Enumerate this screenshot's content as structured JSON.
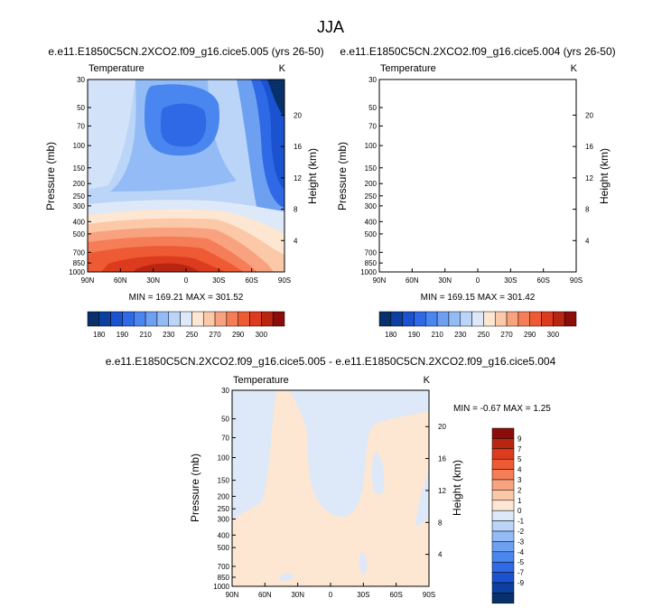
{
  "page_title": "JJA",
  "colors": {
    "cold": [
      "#08306b",
      "#0c3fa0",
      "#1a52d0",
      "#2f69e6",
      "#4a86ef",
      "#6ea0f2",
      "#93bbf5",
      "#bad5f7"
    ],
    "neutral": "#dde9f8",
    "warm": [
      "#fde6d2",
      "#fbc9a8",
      "#f8a27f",
      "#f57d57",
      "#ee5a33",
      "#dc3b1d",
      "#b82612",
      "#8a0d0a"
    ]
  },
  "chart_data": [
    {
      "type": "heatmap",
      "title": "e.e11.E1850C5CN.2XCO2.f09_g16.cice5.005 (yrs 26-50)",
      "field_label": "Temperature",
      "units": "K",
      "xlabel": "",
      "ylabel": "Pressure (mb)",
      "ylabel_right": "Height (km)",
      "x_ticks": [
        "90N",
        "60N",
        "30N",
        "0",
        "30S",
        "60S",
        "90S"
      ],
      "y_ticks": [
        "30",
        "50",
        "70",
        "100",
        "150",
        "200",
        "250",
        "300",
        "400",
        "500",
        "700",
        "850",
        "1000"
      ],
      "y_ticks_right": [
        "20",
        "16",
        "12",
        "8",
        "4"
      ],
      "stats": "MIN = 169.21   MAX = 301.52",
      "colorbar_labels": [
        "180",
        "190",
        "210",
        "230",
        "250",
        "270",
        "290",
        "300"
      ]
    },
    {
      "type": "heatmap",
      "title": "e.e11.E1850C5CN.2XCO2.f09_g16.cice5.004 (yrs 26-50)",
      "field_label": "Temperature",
      "units": "K",
      "xlabel": "",
      "ylabel": "Pressure (mb)",
      "ylabel_right": "Height (km)",
      "x_ticks": [
        "90N",
        "60N",
        "30N",
        "0",
        "30S",
        "60S",
        "90S"
      ],
      "y_ticks": [
        "30",
        "50",
        "70",
        "100",
        "150",
        "200",
        "250",
        "300",
        "400",
        "500",
        "700",
        "850",
        "1000"
      ],
      "y_ticks_right": [
        "20",
        "16",
        "12",
        "8",
        "4"
      ],
      "stats": "MIN = 169.15   MAX = 301.42",
      "colorbar_labels": [
        "180",
        "190",
        "210",
        "230",
        "250",
        "270",
        "290",
        "300"
      ]
    },
    {
      "type": "heatmap",
      "title": "e.e11.E1850C5CN.2XCO2.f09_g16.cice5.005 - e.e11.E1850C5CN.2XCO2.f09_g16.cice5.004",
      "field_label": "Temperature",
      "units": "K",
      "xlabel": "",
      "ylabel": "Pressure (mb)",
      "ylabel_right": "Height (km)",
      "x_ticks": [
        "90N",
        "60N",
        "30N",
        "0",
        "30S",
        "60S",
        "90S"
      ],
      "y_ticks": [
        "30",
        "50",
        "70",
        "100",
        "150",
        "200",
        "250",
        "300",
        "400",
        "500",
        "700",
        "850",
        "1000"
      ],
      "y_ticks_right": [
        "20",
        "16",
        "12",
        "8",
        "4"
      ],
      "stats": "MIN =  -0.67   MAX =   1.25",
      "colorbar_labels": [
        "9",
        "7",
        "5",
        "4",
        "3",
        "2",
        "1",
        "0",
        "-1",
        "-2",
        "-3",
        "-4",
        "-5",
        "-7",
        "-9"
      ]
    }
  ]
}
